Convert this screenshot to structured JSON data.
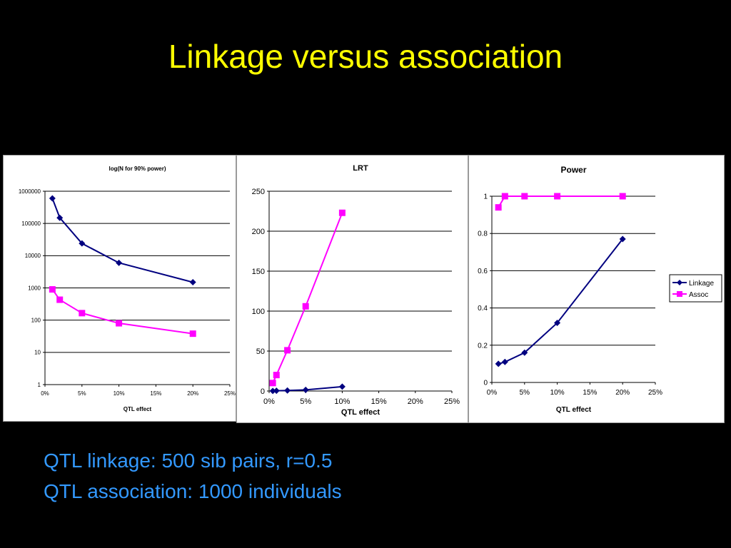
{
  "slide": {
    "title": "Linkage versus association",
    "captions": [
      "QTL linkage: 500 sib pairs, r=0.5",
      "QTL association: 1000 individuals"
    ]
  },
  "colors": {
    "background": "#000000",
    "title": "#ffff00",
    "caption": "#3399ff",
    "linkage": "#000080",
    "assoc": "#ff00ff"
  },
  "chart_data": [
    {
      "type": "line",
      "title": "log(N for 90% power)",
      "xlabel": "QTL effect",
      "ylabel": "",
      "yscale": "log",
      "xlim": [
        0,
        0.25
      ],
      "ylim": [
        1,
        1000000
      ],
      "x_ticks": [
        "0%",
        "5%",
        "10%",
        "15%",
        "20%",
        "25%"
      ],
      "y_ticks": [
        "1",
        "10",
        "100",
        "1000",
        "10000",
        "100000",
        "1000000"
      ],
      "grid": "horizontal",
      "legend": "none",
      "series": [
        {
          "marker": "diamond",
          "color": "#000080",
          "x": [
            0.01,
            0.02,
            0.05,
            0.1,
            0.2
          ],
          "y": [
            600000,
            150000,
            24000,
            6000,
            1500
          ]
        },
        {
          "marker": "square",
          "color": "#ff00ff",
          "x": [
            0.01,
            0.02,
            0.05,
            0.1,
            0.2
          ],
          "y": [
            900,
            430,
            165,
            80,
            38
          ]
        }
      ]
    },
    {
      "type": "line",
      "title": "LRT",
      "xlabel": "QTL effect",
      "ylabel": "",
      "xlim": [
        0,
        0.25
      ],
      "ylim": [
        0,
        250
      ],
      "x_ticks": [
        "0%",
        "5%",
        "10%",
        "15%",
        "20%",
        "25%"
      ],
      "y_ticks": [
        "0",
        "50",
        "100",
        "150",
        "200",
        "250"
      ],
      "grid": "horizontal",
      "legend": "none",
      "series": [
        {
          "marker": "diamond",
          "color": "#000080",
          "x": [
            0.005,
            0.01,
            0.025,
            0.05,
            0.1
          ],
          "y": [
            0.1,
            0.3,
            0.7,
            1.4,
            5.5
          ]
        },
        {
          "marker": "square",
          "color": "#ff00ff",
          "x": [
            0.005,
            0.01,
            0.025,
            0.05,
            0.1
          ],
          "y": [
            10,
            20,
            51,
            106,
            223
          ]
        }
      ]
    },
    {
      "type": "line",
      "title": "Power",
      "xlabel": "QTL effect",
      "ylabel": "",
      "xlim": [
        0,
        0.25
      ],
      "ylim": [
        0,
        1
      ],
      "x_ticks": [
        "0%",
        "5%",
        "10%",
        "15%",
        "20%",
        "25%"
      ],
      "y_ticks": [
        "0",
        "0.2",
        "0.4",
        "0.6",
        "0.8",
        "1"
      ],
      "grid": "horizontal",
      "legend": "right",
      "series": [
        {
          "name": "Linkage",
          "marker": "diamond",
          "color": "#000080",
          "x": [
            0.01,
            0.02,
            0.05,
            0.1,
            0.2
          ],
          "y": [
            0.1,
            0.11,
            0.16,
            0.32,
            0.77
          ]
        },
        {
          "name": "Assoc",
          "marker": "square",
          "color": "#ff00ff",
          "x": [
            0.01,
            0.02,
            0.05,
            0.1,
            0.2
          ],
          "y": [
            0.94,
            1.0,
            1.0,
            1.0,
            1.0
          ]
        }
      ]
    }
  ]
}
